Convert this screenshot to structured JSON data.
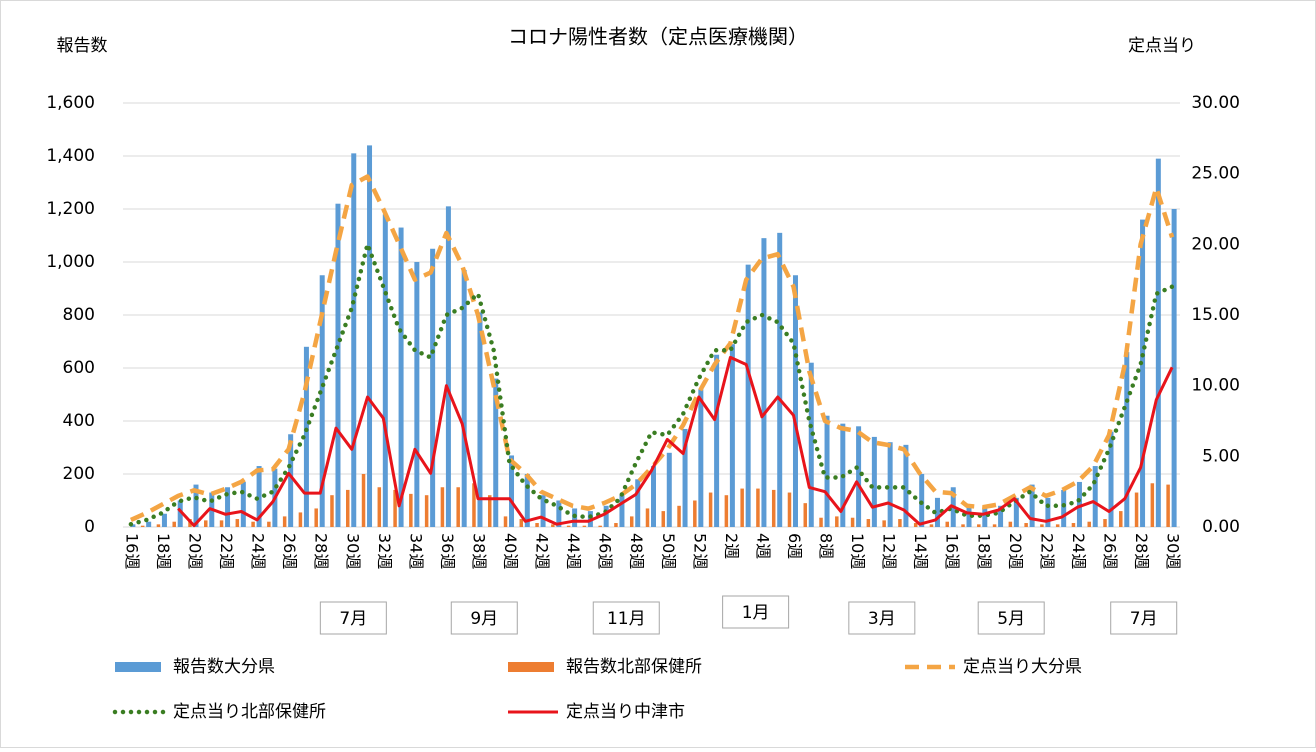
{
  "chart_data": {
    "type": "bar_line",
    "title": "コロナ陽性者数（定点医療機関）",
    "y_label": "報告数",
    "y2_label": "定点当り",
    "categories": [
      "16週",
      null,
      "18週",
      null,
      "20週",
      null,
      "22週",
      null,
      "24週",
      null,
      "26週",
      null,
      "28週",
      null,
      "30週",
      null,
      "32週",
      null,
      "34週",
      null,
      "36週",
      null,
      "38週",
      null,
      "40週",
      null,
      "42週",
      null,
      "44週",
      null,
      "46週",
      null,
      "48週",
      null,
      "50週",
      null,
      "52週",
      null,
      "2週",
      null,
      "4週",
      null,
      "6週",
      null,
      "8週",
      null,
      "10週",
      null,
      "12週",
      null,
      "14週",
      null,
      "16週",
      null,
      "18週",
      null,
      "20週",
      null,
      "22週",
      null,
      "24週",
      null,
      "26週",
      null,
      "28週",
      null,
      "30週"
    ],
    "month_labels": [
      "7月",
      "9月",
      "11月",
      "1月",
      "3月",
      "5月",
      "7月"
    ],
    "ylim": [
      0,
      1600
    ],
    "yticks": [
      0,
      200,
      400,
      600,
      800,
      {
        "value": 1000,
        "label": "1,000"
      },
      {
        "value": 1200,
        "label": "1,200"
      },
      {
        "value": 1400,
        "label": "1,400"
      },
      {
        "value": 1600,
        "label": "1,600"
      }
    ],
    "y2lim": [
      0,
      30
    ],
    "y2ticks": [
      {
        "value": 0,
        "label": "0.00"
      },
      {
        "value": 5,
        "label": "5.00"
      },
      {
        "value": 10,
        "label": "10.00"
      },
      {
        "value": 15,
        "label": "15.00"
      },
      {
        "value": 20,
        "label": "20.00"
      },
      {
        "value": 25,
        "label": "25.00"
      },
      {
        "value": 30,
        "label": "30.00"
      }
    ],
    "grid": true,
    "legend": "bottom",
    "series": [
      {
        "name": "報告数大分県",
        "kind": "bar",
        "color": "#5b9bd5",
        "values": [
          10,
          20,
          50,
          100,
          160,
          130,
          150,
          170,
          230,
          220,
          350,
          680,
          950,
          1220,
          1410,
          1440,
          1180,
          1130,
          1000,
          1050,
          1210,
          970,
          810,
          560,
          270,
          200,
          120,
          100,
          70,
          60,
          80,
          120,
          180,
          230,
          280,
          370,
          520,
          650,
          690,
          990,
          1090,
          1110,
          950,
          620,
          420,
          390,
          380,
          340,
          320,
          310,
          200,
          110,
          150,
          80,
          70,
          80,
          110,
          160,
          110,
          140,
          170,
          230,
          360,
          660,
          1160,
          1390,
          1200
        ]
      },
      {
        "name": "報告数北部保健所",
        "kind": "bar",
        "color": "#ed7d31",
        "values": [
          0,
          5,
          10,
          20,
          30,
          25,
          25,
          30,
          20,
          20,
          40,
          55,
          70,
          120,
          140,
          200,
          150,
          140,
          125,
          120,
          150,
          150,
          165,
          120,
          40,
          30,
          15,
          10,
          5,
          5,
          5,
          15,
          40,
          70,
          60,
          80,
          100,
          130,
          120,
          145,
          145,
          140,
          130,
          90,
          35,
          40,
          35,
          30,
          25,
          30,
          15,
          10,
          20,
          10,
          10,
          10,
          20,
          15,
          10,
          10,
          15,
          20,
          30,
          60,
          130,
          165,
          160
        ]
      },
      {
        "name": "定点当り大分県",
        "kind": "line",
        "axis": "y2",
        "color": "#f4a544",
        "dash": "dashed",
        "values": [
          0.5,
          1.0,
          1.6,
          2.2,
          2.6,
          2.3,
          2.7,
          3.2,
          4.0,
          4.1,
          5.5,
          9.5,
          14.5,
          19.5,
          24.2,
          24.8,
          22.5,
          20,
          17.5,
          18,
          20.8,
          18.5,
          15,
          10,
          4.8,
          3.8,
          2.5,
          2.0,
          1.5,
          1.3,
          1.7,
          2.2,
          3.0,
          4.2,
          5.5,
          7.2,
          9.5,
          11.5,
          13,
          17.5,
          19,
          19.3,
          17,
          11,
          7.5,
          7,
          6.8,
          6,
          5.8,
          5.5,
          3.8,
          2.5,
          2.4,
          1.5,
          1.4,
          1.6,
          2.2,
          2.8,
          2.2,
          2.6,
          3.2,
          4.3,
          6.5,
          11.5,
          20,
          24,
          20.5
        ]
      },
      {
        "name": "定点当り北部保健所",
        "kind": "line",
        "axis": "y2",
        "color": "#3a7d22",
        "dash": "dotted",
        "values": [
          0.2,
          0.5,
          1.0,
          1.8,
          2.1,
          1.8,
          2.3,
          2.5,
          2.0,
          2.5,
          4.2,
          6.5,
          9.5,
          12.5,
          15.5,
          20,
          17,
          14,
          12.5,
          12,
          15,
          15.5,
          16.5,
          12.5,
          4.5,
          3,
          2,
          1.5,
          0.8,
          0.7,
          1,
          2,
          4.5,
          6.7,
          6.5,
          8,
          10.5,
          12.5,
          12.5,
          14.5,
          15,
          14.5,
          13,
          7.5,
          3.5,
          3.5,
          4.2,
          2.8,
          2.8,
          2.8,
          1.8,
          1.0,
          1.3,
          0.8,
          0.8,
          1.0,
          1.8,
          2.5,
          1.5,
          1.5,
          1.8,
          3.0,
          5.5,
          8.5,
          11.5,
          16.5,
          17
        ]
      },
      {
        "name": "定点当り中津市",
        "kind": "line",
        "axis": "y2",
        "color": "#e8141b",
        "dash": "solid",
        "values": [
          null,
          null,
          null,
          1.3,
          0.1,
          1.3,
          0.9,
          1.1,
          0.5,
          1.8,
          3.8,
          2.4,
          2.4,
          7,
          5.5,
          9.2,
          7.7,
          1.5,
          5.5,
          3.8,
          10,
          7.3,
          2,
          2,
          2,
          0.4,
          0.7,
          0.2,
          0.4,
          0.4,
          0.9,
          1.6,
          2.3,
          4,
          6.2,
          5.2,
          9.2,
          7.6,
          12,
          11.5,
          7.8,
          9.2,
          7.9,
          2.8,
          2.5,
          1.1,
          3.2,
          1.4,
          1.7,
          1.2,
          0.2,
          0.5,
          1.5,
          1.0,
          0.9,
          1.2,
          2.0,
          0.6,
          0.4,
          0.7,
          1.4,
          1.8,
          1.1,
          2.0,
          4.2,
          9,
          11.3
        ]
      }
    ]
  }
}
